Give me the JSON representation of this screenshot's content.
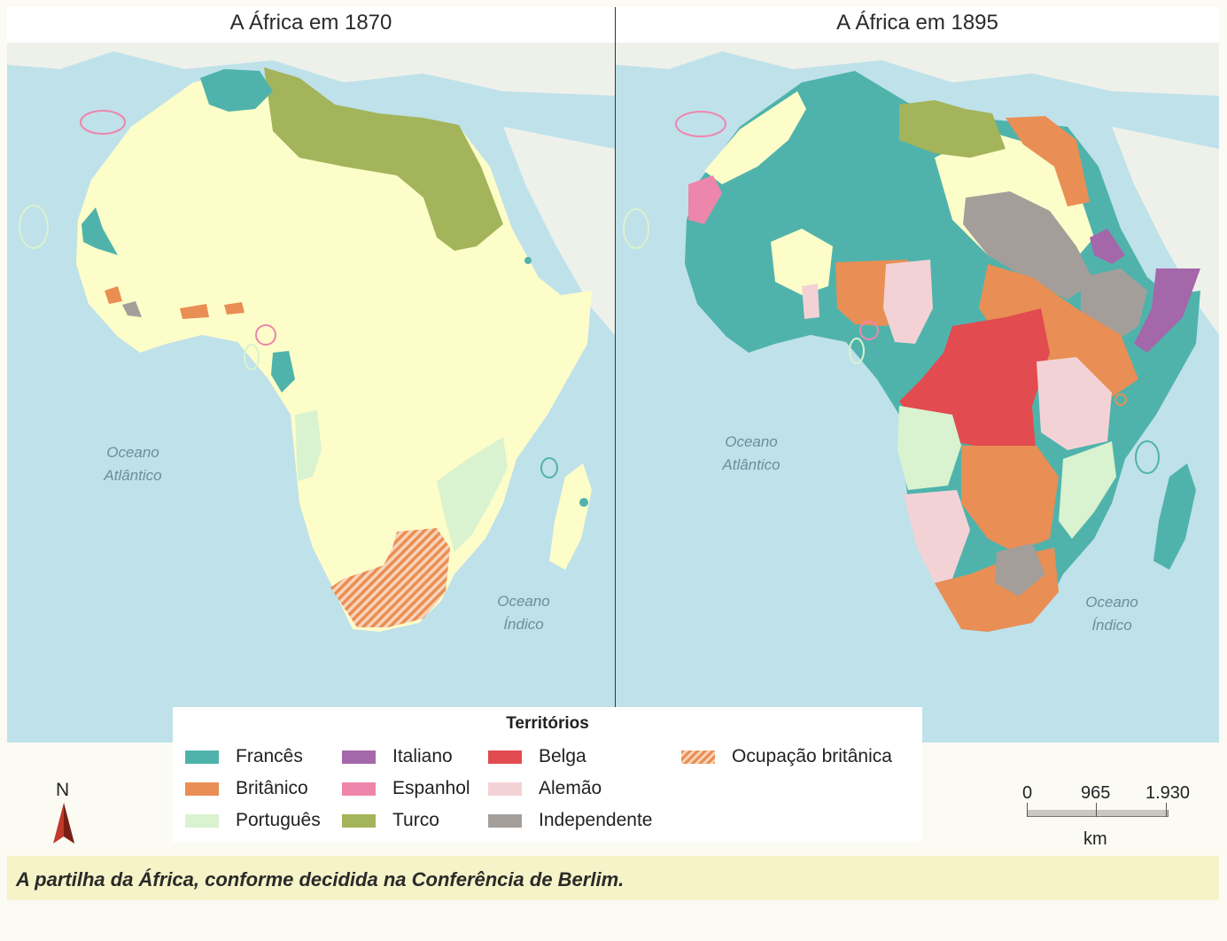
{
  "titles": {
    "left": "A África em 1870",
    "right": "A África em 1895"
  },
  "ocean_labels": {
    "atlantic_line1": "Oceano",
    "atlantic_line2": "Atlântico",
    "indian_line1": "Oceano",
    "indian_line2": "Índico"
  },
  "legend": {
    "title": "Territórios",
    "items": [
      {
        "label": "Francês",
        "color": "#4fb3ac"
      },
      {
        "label": "Britânico",
        "color": "#e98e54"
      },
      {
        "label": "Português",
        "color": "#d9f2cf"
      },
      {
        "label": "Italiano",
        "color": "#a467a9"
      },
      {
        "label": "Espanhol",
        "color": "#ee86ac"
      },
      {
        "label": "Turco",
        "color": "#a3b45a"
      },
      {
        "label": "Belga",
        "color": "#e24b4f"
      },
      {
        "label": "Alemão",
        "color": "#f3d2d6"
      },
      {
        "label": "Independente",
        "color": "#a49e9b"
      },
      {
        "label": "Ocupação britânica",
        "color": "#e98e54",
        "pattern": "hatch"
      }
    ]
  },
  "north_label": "N",
  "scale": {
    "ticks": [
      "0",
      "965",
      "1.930"
    ],
    "unit": "km"
  },
  "caption": "A partilha da África, conforme decidida na Conferência de Berlim.",
  "colors": {
    "sea": "#bfe1ea",
    "land_other": "#eef1ea",
    "unclaimed_africa": "#fdfdc9"
  }
}
